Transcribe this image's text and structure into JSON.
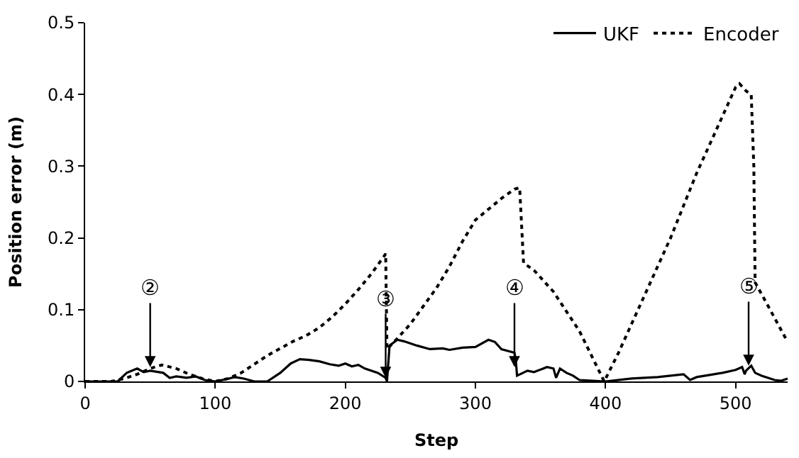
{
  "chart_data": {
    "type": "line",
    "xlabel": "Step",
    "ylabel": "Position error (m)",
    "xlim": [
      0,
      540
    ],
    "ylim": [
      0,
      0.5
    ],
    "xticks": [
      0,
      100,
      200,
      300,
      400,
      500
    ],
    "yticks": [
      0,
      0.1,
      0.2,
      0.3,
      0.4,
      0.5
    ],
    "legend": "top right",
    "marker": "none",
    "series": [
      {
        "name": "UKF",
        "color": "#000000",
        "line_style": "solid",
        "x": [
          0,
          25,
          32,
          40,
          45,
          50,
          60,
          65,
          70,
          78,
          85,
          92,
          100,
          108,
          115,
          122,
          130,
          140,
          150,
          158,
          165,
          172,
          180,
          188,
          195,
          200,
          205,
          210,
          215,
          225,
          231,
          232,
          234,
          240,
          245,
          255,
          265,
          275,
          280,
          290,
          300,
          310,
          315,
          320,
          330,
          331,
          332,
          340,
          345,
          355,
          360,
          362,
          365,
          370,
          375,
          380,
          390,
          400,
          420,
          440,
          460,
          465,
          470,
          480,
          490,
          500,
          505,
          507,
          508,
          512,
          515,
          520,
          530,
          535,
          540
        ],
        "values": [
          0,
          0,
          0.012,
          0.018,
          0.013,
          0.015,
          0.012,
          0.005,
          0.007,
          0.005,
          0.007,
          0.002,
          0,
          0.003,
          0.006,
          0.004,
          0,
          0,
          0.012,
          0.025,
          0.031,
          0.03,
          0.028,
          0.024,
          0.022,
          0.025,
          0.021,
          0.023,
          0.018,
          0.012,
          0.005,
          0,
          0.05,
          0.058,
          0.056,
          0.05,
          0.045,
          0.046,
          0.044,
          0.047,
          0.048,
          0.058,
          0.055,
          0.045,
          0.04,
          0.03,
          0.008,
          0.015,
          0.013,
          0.02,
          0.018,
          0.005,
          0.018,
          0.012,
          0.008,
          0.002,
          0.001,
          0,
          0.004,
          0.006,
          0.01,
          0.002,
          0.006,
          0.009,
          0.012,
          0.016,
          0.02,
          0.01,
          0.015,
          0.022,
          0.012,
          0.008,
          0.002,
          0.001,
          0.004
        ]
      },
      {
        "name": "Encoder",
        "color": "#000000",
        "line_style": "dotted",
        "x": [
          0,
          20,
          30,
          40,
          50,
          59,
          70,
          80,
          90,
          100,
          110,
          120,
          130,
          140,
          150,
          160,
          170,
          180,
          190,
          200,
          210,
          220,
          230,
          231,
          232,
          240,
          250,
          260,
          270,
          280,
          290,
          300,
          310,
          320,
          330,
          334,
          337,
          345,
          360,
          380,
          399,
          410,
          420,
          430,
          440,
          450,
          460,
          470,
          480,
          490,
          500,
          503,
          508,
          512,
          514,
          515,
          525,
          540
        ],
        "values": [
          0,
          0,
          0.004,
          0.01,
          0.018,
          0.023,
          0.018,
          0.01,
          0.004,
          0,
          0.004,
          0.012,
          0.024,
          0.036,
          0.046,
          0.056,
          0.064,
          0.075,
          0.09,
          0.108,
          0.128,
          0.15,
          0.175,
          0.178,
          0.045,
          0.06,
          0.08,
          0.105,
          0.13,
          0.16,
          0.195,
          0.225,
          0.24,
          0.255,
          0.268,
          0.27,
          0.165,
          0.155,
          0.125,
          0.07,
          0,
          0.04,
          0.08,
          0.12,
          0.16,
          0.2,
          0.245,
          0.29,
          0.33,
          0.37,
          0.41,
          0.415,
          0.405,
          0.4,
          0.3,
          0.138,
          0.105,
          0.055
        ]
      }
    ],
    "annotations": [
      {
        "text": "②",
        "x": 50,
        "y": 0.02
      },
      {
        "text": "③",
        "x": 231,
        "y": 0.005
      },
      {
        "text": "④",
        "x": 330,
        "y": 0.02
      },
      {
        "text": "⑤",
        "x": 510,
        "y": 0.022
      }
    ]
  }
}
